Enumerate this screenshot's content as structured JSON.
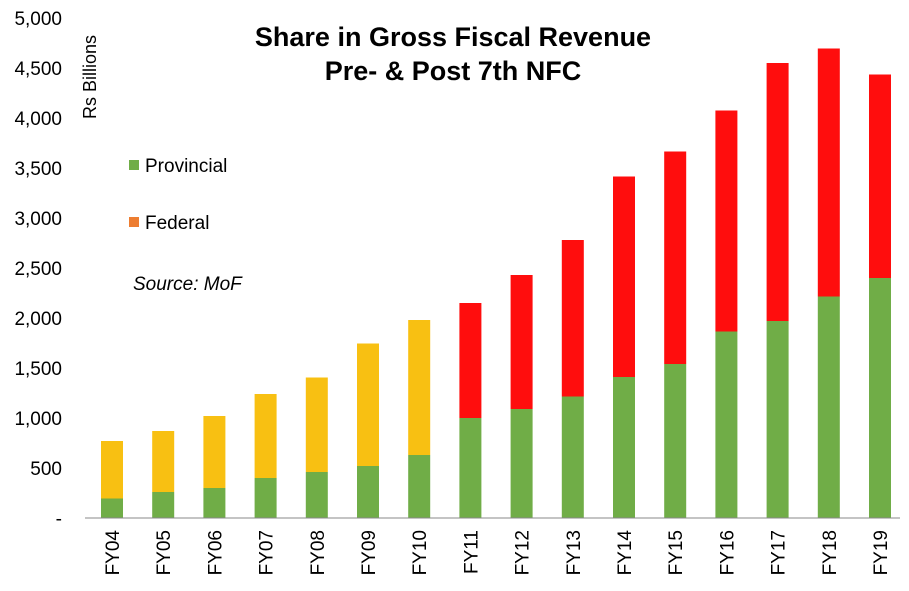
{
  "chart_data": {
    "type": "bar",
    "stacked": true,
    "title": "Share in Gross Fiscal Revenue",
    "subtitle": "Pre- & Post 7th NFC",
    "ylabel": "Rs Billions",
    "xlabel": "",
    "ylim": [
      0,
      5000
    ],
    "yticks": [
      "-",
      "500",
      "1,000",
      "1,500",
      "2,000",
      "2,500",
      "3,000",
      "3,500",
      "4,000",
      "4,500",
      "5,000"
    ],
    "grid": false,
    "categories": [
      "FY04",
      "FY05",
      "FY06",
      "FY07",
      "FY08",
      "FY09",
      "FY10",
      "FY11",
      "FY12",
      "FY13",
      "FY14",
      "FY15",
      "FY16",
      "FY17",
      "FY18",
      "FY19"
    ],
    "series": [
      {
        "name": "Provincial",
        "values": [
          195,
          260,
          300,
          400,
          460,
          520,
          630,
          1000,
          1090,
          1215,
          1410,
          1540,
          1865,
          1970,
          2215,
          2400
        ]
      },
      {
        "name": "Federal",
        "values": [
          575,
          610,
          720,
          840,
          945,
          1225,
          1350,
          1150,
          1340,
          1565,
          2005,
          2125,
          2210,
          2580,
          2480,
          2035
        ]
      }
    ],
    "federal_colors_by_category": [
      "#F8C012",
      "#F8C012",
      "#F8C012",
      "#F8C012",
      "#F8C012",
      "#F8C012",
      "#F8C012",
      "#FF0D0D",
      "#FF0D0D",
      "#FF0D0D",
      "#FF0D0D",
      "#FF0D0D",
      "#FF0D0D",
      "#FF0D0D",
      "#FF0D0D",
      "#FF0D0D"
    ],
    "colors": {
      "provincial": "#70AD47",
      "federal_legend": "#ED7D31"
    },
    "legend": {
      "placement": "top-left",
      "items": [
        "Provincial",
        "Federal"
      ]
    },
    "annotation": "Source: MoF"
  }
}
